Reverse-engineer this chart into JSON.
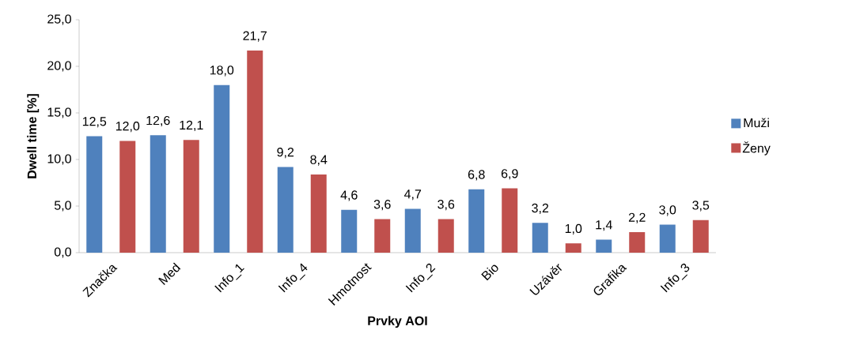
{
  "chart_data": {
    "type": "bar",
    "xlabel": "Prvky AOI",
    "ylabel": "Dwell time [%]",
    "categories": [
      "Značka",
      "Med",
      "Info_1",
      "Info_4",
      "Hmotnost",
      "Info_2",
      "Bio",
      "Uzávěr",
      "Grafika",
      "Info_3"
    ],
    "series": [
      {
        "name": "Muži",
        "color": "#4f81bd",
        "values": [
          12.5,
          12.6,
          18.0,
          9.2,
          4.6,
          4.7,
          6.8,
          3.2,
          1.4,
          3.0
        ],
        "value_labels": [
          "12,5",
          "12,6",
          "18,0",
          "9,2",
          "4,6",
          "4,7",
          "6,8",
          "3,2",
          "1,4",
          "3,0"
        ]
      },
      {
        "name": "Ženy",
        "color": "#c0504d",
        "values": [
          12.0,
          12.1,
          21.7,
          8.4,
          3.6,
          3.6,
          6.9,
          1.0,
          2.2,
          3.5
        ],
        "value_labels": [
          "12,0",
          "12,1",
          "21,7",
          "8,4",
          "3,6",
          "3,6",
          "6,9",
          "1,0",
          "2,2",
          "3,5"
        ]
      }
    ],
    "ylim": [
      0,
      25
    ],
    "yticks": [
      {
        "value": 0,
        "label": "0,0"
      },
      {
        "value": 5,
        "label": "5,0"
      },
      {
        "value": 10,
        "label": "10,0"
      },
      {
        "value": 15,
        "label": "15,0"
      },
      {
        "value": 20,
        "label": "20,0"
      },
      {
        "value": 25,
        "label": "25,0"
      }
    ],
    "grid": false,
    "legend": "right"
  }
}
